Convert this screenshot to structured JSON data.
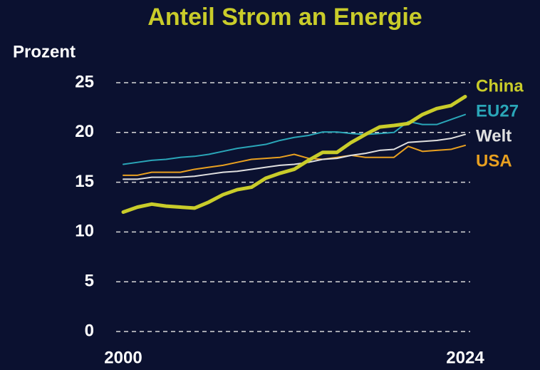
{
  "chart_data": {
    "type": "line",
    "title": "Anteil Strom an Energie",
    "y_label": "Prozent",
    "x": [
      2000,
      2001,
      2002,
      2003,
      2004,
      2005,
      2006,
      2007,
      2008,
      2009,
      2010,
      2011,
      2012,
      2013,
      2014,
      2015,
      2016,
      2017,
      2018,
      2019,
      2020,
      2021,
      2022,
      2023,
      2024
    ],
    "xlim": [
      2000,
      2024
    ],
    "xticks": [
      2000,
      2024
    ],
    "ylim": [
      0,
      25
    ],
    "yticks": [
      0,
      5,
      10,
      15,
      20,
      25
    ],
    "grid": true,
    "series": [
      {
        "name": "China",
        "color": "#c9cc2a",
        "values": [
          12.0,
          12.5,
          12.8,
          12.6,
          12.5,
          12.4,
          13.0,
          13.75,
          14.25,
          14.5,
          15.4,
          15.9,
          16.3,
          17.2,
          18.0,
          18.0,
          19.0,
          19.8,
          20.55,
          20.7,
          20.9,
          21.8,
          22.4,
          22.7,
          23.6
        ]
      },
      {
        "name": "EU27",
        "color": "#2aa6b8",
        "values": [
          16.8,
          17.0,
          17.2,
          17.3,
          17.5,
          17.6,
          17.8,
          18.1,
          18.4,
          18.6,
          18.8,
          19.2,
          19.5,
          19.7,
          20.05,
          20.05,
          19.9,
          19.8,
          19.9,
          20.0,
          21.1,
          20.8,
          20.8,
          21.3,
          21.8
        ]
      },
      {
        "name": "Welt",
        "color": "#e0e0e0",
        "values": [
          15.3,
          15.3,
          15.5,
          15.5,
          15.5,
          15.6,
          15.8,
          16.0,
          16.1,
          16.3,
          16.5,
          16.7,
          16.8,
          17.0,
          17.3,
          17.4,
          17.7,
          17.9,
          18.2,
          18.3,
          19.0,
          19.1,
          19.2,
          19.4,
          19.8
        ]
      },
      {
        "name": "USA",
        "color": "#e8a020",
        "values": [
          15.7,
          15.7,
          16.0,
          16.0,
          16.0,
          16.3,
          16.5,
          16.7,
          17.0,
          17.3,
          17.4,
          17.5,
          17.8,
          17.4,
          17.3,
          17.5,
          17.7,
          17.5,
          17.5,
          17.5,
          18.6,
          18.1,
          18.2,
          18.3,
          18.7
        ]
      }
    ]
  }
}
